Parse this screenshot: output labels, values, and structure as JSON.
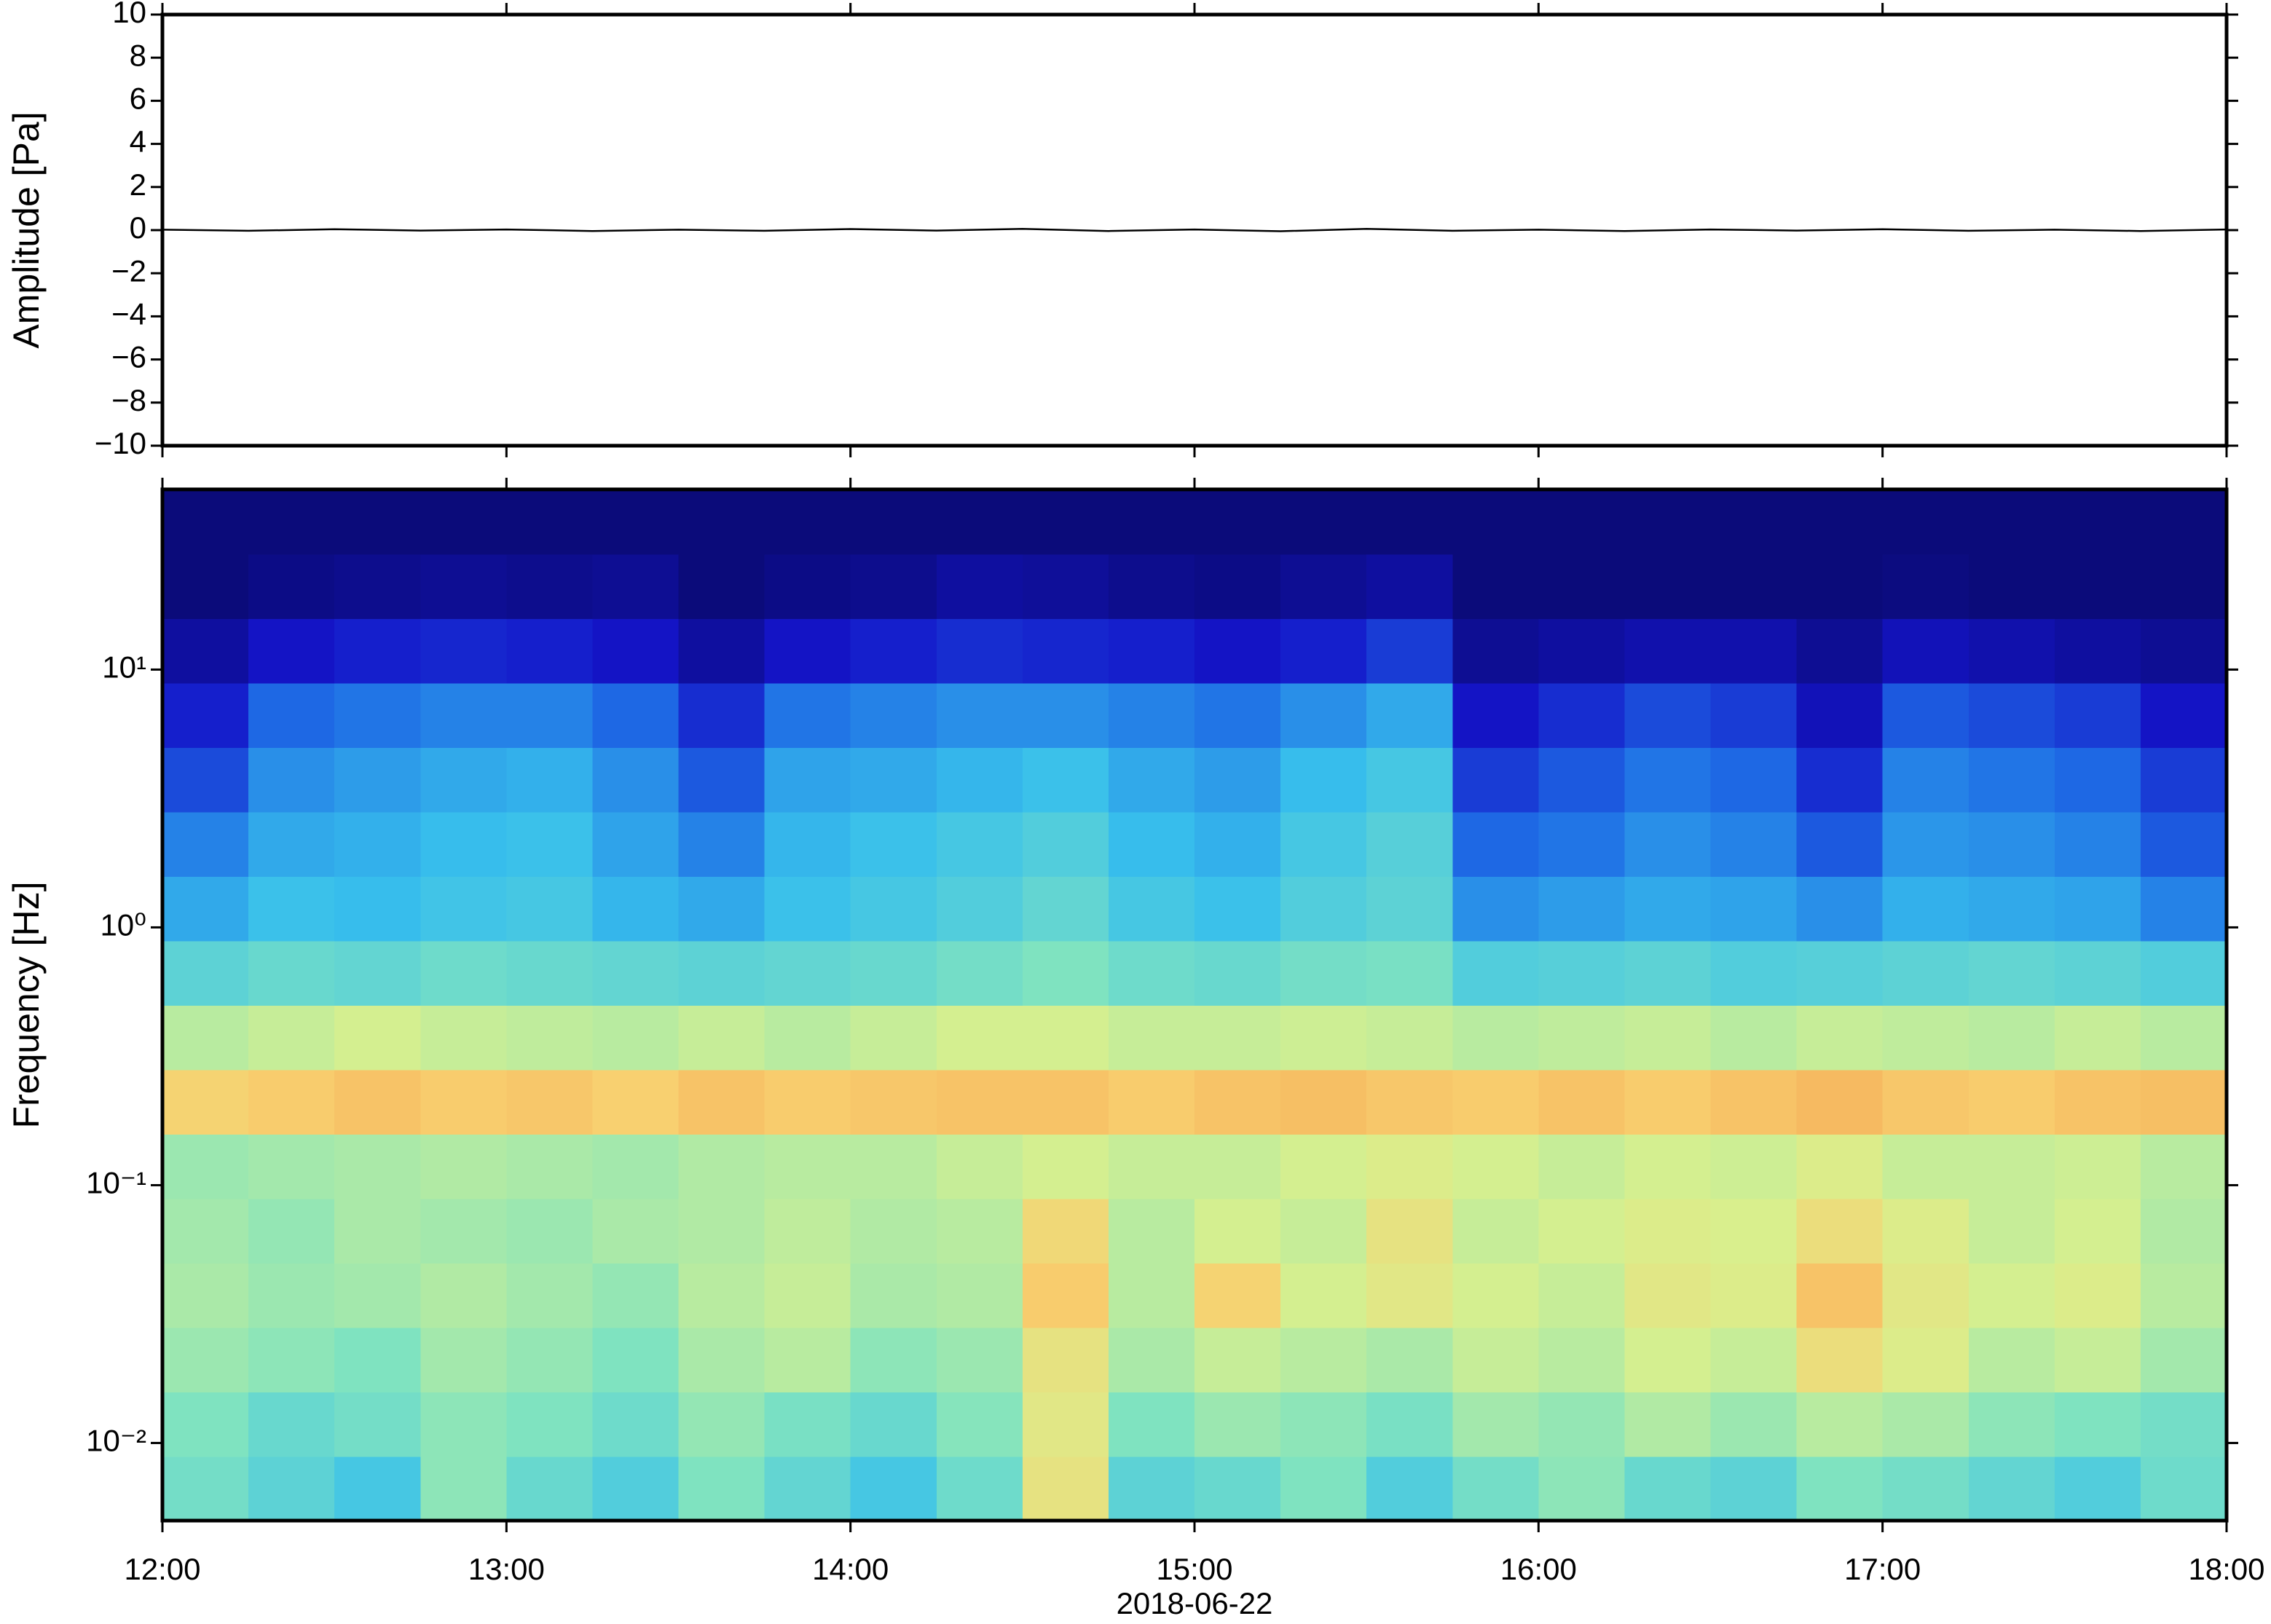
{
  "chart_data": [
    {
      "type": "line",
      "ylabel": "Amplitude [Pa]",
      "color": "#000000",
      "x": [
        "12:00",
        "12:15",
        "12:30",
        "12:45",
        "13:00",
        "13:15",
        "13:30",
        "13:45",
        "14:00",
        "14:15",
        "14:30",
        "14:45",
        "15:00",
        "15:15",
        "15:30",
        "15:45",
        "16:00",
        "16:15",
        "16:30",
        "16:45",
        "17:00",
        "17:15",
        "17:30",
        "17:45",
        "18:00"
      ],
      "values": [
        0.02,
        -0.03,
        0.04,
        -0.02,
        0.03,
        -0.04,
        0.02,
        -0.03,
        0.05,
        -0.02,
        0.06,
        -0.04,
        0.03,
        -0.05,
        0.06,
        -0.03,
        0.02,
        -0.04,
        0.03,
        -0.02,
        0.04,
        -0.03,
        0.02,
        -0.04,
        0.03
      ],
      "xlim": [
        "12:00",
        "18:00"
      ],
      "xticks": [
        "12:00",
        "13:00",
        "14:00",
        "15:00",
        "16:00",
        "17:00",
        "18:00"
      ],
      "ylim": [
        -10,
        10
      ],
      "yticks": [
        {
          "value": -10,
          "label": "−10"
        },
        {
          "value": -8,
          "label": "−8"
        },
        {
          "value": -6,
          "label": "−6"
        },
        {
          "value": -4,
          "label": "−4"
        },
        {
          "value": -2,
          "label": "−2"
        },
        0,
        2,
        4,
        6,
        8,
        10
      ]
    },
    {
      "type": "heatmap",
      "ylabel": "Frequency [Hz]",
      "xlabel": "2018-06-22",
      "log_y": true,
      "xlim": [
        "12:00",
        "18:00"
      ],
      "xticks": [
        "12:00",
        "13:00",
        "14:00",
        "15:00",
        "16:00",
        "17:00",
        "18:00"
      ],
      "ylim": [
        0.005,
        50
      ],
      "yticks": [
        {
          "value": 0.01,
          "label": "10⁻²"
        },
        {
          "value": 0.1,
          "label": "10⁻¹"
        },
        {
          "value": 1,
          "label": "10⁰"
        },
        {
          "value": 10,
          "label": "10¹"
        }
      ],
      "x_bins": [
        "12:00",
        "12:15",
        "12:30",
        "12:45",
        "13:00",
        "13:15",
        "13:30",
        "13:45",
        "14:00",
        "14:15",
        "14:30",
        "14:45",
        "15:00",
        "15:15",
        "15:30",
        "15:45",
        "16:00",
        "16:15",
        "16:30",
        "16:45",
        "17:00",
        "17:15",
        "17:30",
        "17:45",
        "18:00"
      ],
      "y_bins": [
        0.005,
        0.00889,
        0.0158,
        0.0281,
        0.05,
        0.0889,
        0.158,
        0.281,
        0.5,
        0.889,
        1.58,
        2.81,
        5,
        8.89,
        15.8,
        28.1,
        50
      ],
      "zlim": [
        0,
        100
      ],
      "colormap": [
        "#0b0b7a",
        "#1414c8",
        "#1f6fe6",
        "#38c0ec",
        "#7fe3c0",
        "#d8f08e",
        "#f8d070",
        "#f29a4a",
        "#e03a2a"
      ],
      "z": [
        [
          48,
          44,
          40,
          52,
          46,
          42,
          50,
          45,
          40,
          47,
          68,
          44,
          46,
          50,
          42,
          48,
          52,
          46,
          44,
          50,
          48,
          45,
          42,
          47
        ],
        [
          50,
          46,
          48,
          52,
          50,
          47,
          53,
          49,
          46,
          51,
          66,
          50,
          54,
          52,
          49,
          55,
          53,
          57,
          54,
          58,
          56,
          52,
          50,
          48
        ],
        [
          54,
          52,
          50,
          55,
          53,
          50,
          56,
          58,
          52,
          54,
          68,
          56,
          60,
          58,
          56,
          60,
          58,
          62,
          60,
          70,
          64,
          58,
          60,
          55
        ],
        [
          56,
          54,
          55,
          57,
          55,
          53,
          58,
          60,
          56,
          57,
          76,
          58,
          74,
          62,
          66,
          62,
          60,
          66,
          64,
          78,
          66,
          62,
          64,
          58
        ],
        [
          55,
          53,
          56,
          55,
          54,
          56,
          57,
          59,
          57,
          58,
          72,
          58,
          62,
          60,
          68,
          60,
          62,
          64,
          63,
          70,
          64,
          60,
          62,
          57
        ],
        [
          54,
          55,
          56,
          57,
          56,
          55,
          57,
          58,
          58,
          60,
          62,
          60,
          60,
          62,
          64,
          62,
          60,
          62,
          61,
          64,
          60,
          60,
          61,
          58
        ],
        [
          74,
          76,
          78,
          76,
          77,
          75,
          78,
          76,
          77,
          78,
          78,
          76,
          78,
          79,
          77,
          76,
          78,
          76,
          78,
          80,
          77,
          76,
          78,
          79
        ],
        [
          58,
          60,
          62,
          60,
          59,
          58,
          60,
          58,
          60,
          62,
          62,
          60,
          60,
          61,
          60,
          58,
          59,
          60,
          58,
          60,
          59,
          58,
          60,
          58
        ],
        [
          44,
          46,
          45,
          47,
          46,
          45,
          44,
          45,
          46,
          48,
          50,
          47,
          46,
          48,
          49,
          42,
          43,
          44,
          42,
          43,
          44,
          45,
          44,
          42
        ],
        [
          34,
          38,
          37,
          39,
          40,
          36,
          34,
          38,
          40,
          42,
          45,
          40,
          38,
          42,
          44,
          30,
          32,
          34,
          33,
          30,
          35,
          34,
          33,
          28
        ],
        [
          28,
          34,
          35,
          37,
          38,
          33,
          28,
          36,
          38,
          40,
          42,
          37,
          35,
          40,
          43,
          24,
          26,
          30,
          28,
          22,
          31,
          30,
          28,
          22
        ],
        [
          20,
          30,
          32,
          34,
          35,
          30,
          22,
          33,
          34,
          36,
          38,
          34,
          32,
          37,
          40,
          18,
          22,
          26,
          24,
          16,
          28,
          26,
          24,
          18
        ],
        [
          14,
          24,
          26,
          28,
          28,
          24,
          16,
          26,
          28,
          30,
          30,
          28,
          26,
          30,
          34,
          12,
          16,
          20,
          18,
          10,
          22,
          20,
          18,
          12
        ],
        [
          6,
          12,
          14,
          15,
          14,
          12,
          6,
          12,
          14,
          16,
          15,
          14,
          12,
          14,
          18,
          4,
          6,
          8,
          8,
          4,
          10,
          8,
          6,
          4
        ],
        [
          0,
          2,
          3,
          4,
          3,
          4,
          0,
          2,
          3,
          6,
          5,
          3,
          2,
          4,
          6,
          0,
          0,
          0,
          0,
          0,
          1,
          0,
          0,
          0
        ],
        [
          0,
          0,
          0,
          0,
          0,
          0,
          0,
          0,
          0,
          0,
          0,
          0,
          0,
          0,
          0,
          0,
          0,
          0,
          0,
          0,
          0,
          0,
          0,
          0
        ]
      ]
    }
  ]
}
